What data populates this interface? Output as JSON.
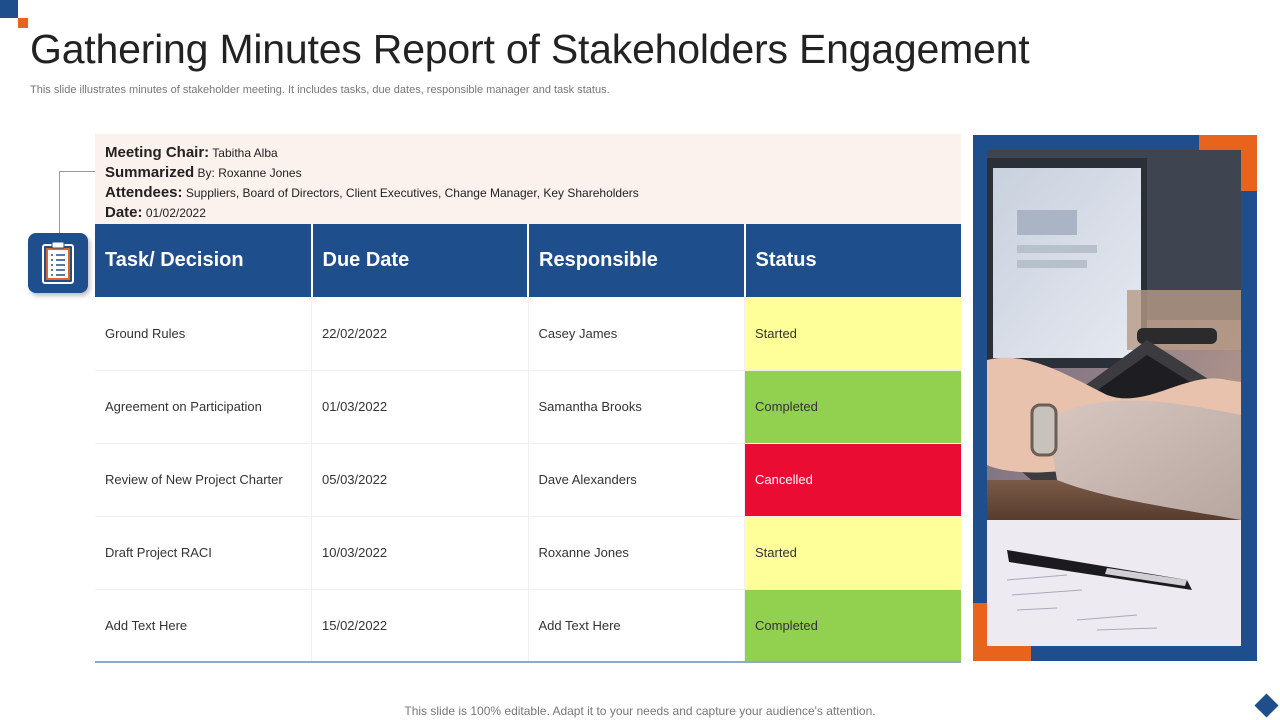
{
  "slide": {
    "title": "Gathering Minutes Report of Stakeholders Engagement",
    "subtitle": "This slide illustrates minutes of stakeholder meeting. It includes tasks, due dates, responsible manager and task status.",
    "footer": "This slide is 100% editable. Adapt it to your needs and capture your audience's attention."
  },
  "meeting": {
    "chair_label": "Meeting Chair:",
    "chair_value": " Tabitha  Alba",
    "summarized_label": "Summarized",
    "summarized_by": " By:",
    "summarized_value": "  Roxanne Jones",
    "attendees_label": "Attendees:",
    "attendees_value": " Suppliers, Board of Directors, Client Executives, Change Manager, Key Shareholders",
    "date_label": "Date:",
    "date_value": " 01/02/2022"
  },
  "table": {
    "headers": [
      "Task/ Decision",
      "Due Date",
      "Responsible",
      "Status"
    ],
    "rows": [
      {
        "task": "Ground Rules",
        "due": "22/02/2022",
        "responsible": "Casey James",
        "status": "Started"
      },
      {
        "task": "Agreement on Participation",
        "due": "01/03/2022",
        "responsible": "Samantha Brooks",
        "status": "Completed"
      },
      {
        "task": "Review  of New Project Charter",
        "due": "05/03/2022",
        "responsible": "Dave  Alexanders",
        "status": "Cancelled"
      },
      {
        "task": "Draft Project RACI",
        "due": "10/03/2022",
        "responsible": "Roxanne  Jones",
        "status": "Started"
      },
      {
        "task": "Add Text Here",
        "due": "15/02/2022",
        "responsible": "Add Text Here",
        "status": "Completed"
      }
    ]
  },
  "colors": {
    "accent_blue": "#1f4e8c",
    "accent_orange": "#e8631c",
    "status_started": "#ffff99",
    "status_completed": "#92d050",
    "status_cancelled": "#eb0c33"
  },
  "icons": {
    "badge": "clipboard-checklist-icon",
    "footer": "diamond-icon"
  }
}
